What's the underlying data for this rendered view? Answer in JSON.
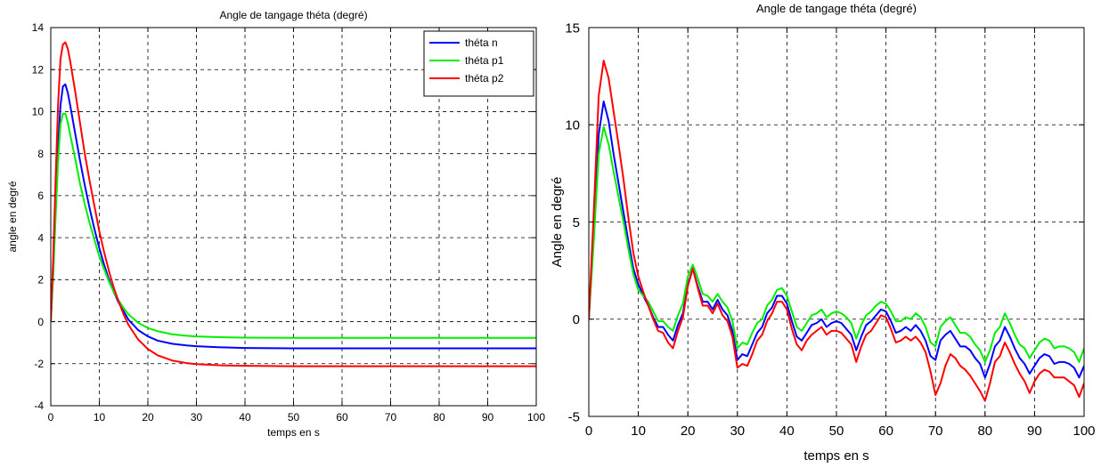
{
  "chart_data": [
    {
      "type": "line",
      "title": "Angle de tangage théta (degré)",
      "xlabel": "temps en s",
      "ylabel": "angle en degré",
      "xlim": [
        0,
        100
      ],
      "ylim": [
        -4,
        14
      ],
      "xticks": [
        0,
        10,
        20,
        30,
        40,
        50,
        60,
        70,
        80,
        90,
        100
      ],
      "yticks": [
        -4,
        -2,
        0,
        2,
        4,
        6,
        8,
        10,
        12,
        14
      ],
      "grid": true,
      "legend": "top-right",
      "series": [
        {
          "name": "théta n",
          "color": "#0000ff",
          "x": [
            0,
            0.5,
            1,
            1.5,
            2,
            2.5,
            3,
            3.5,
            4,
            5,
            6,
            7,
            8,
            9,
            10,
            11,
            12,
            13,
            14,
            15,
            16,
            18,
            20,
            22,
            25,
            28,
            30,
            35,
            40,
            50,
            60,
            70,
            80,
            90,
            100
          ],
          "y": [
            0,
            2.5,
            5.5,
            8.3,
            10.3,
            11.2,
            11.3,
            10.9,
            10.3,
            9.0,
            7.7,
            6.5,
            5.4,
            4.4,
            3.5,
            2.7,
            2.0,
            1.4,
            0.9,
            0.5,
            0.1,
            -0.4,
            -0.7,
            -0.9,
            -1.05,
            -1.13,
            -1.17,
            -1.22,
            -1.25,
            -1.27,
            -1.27,
            -1.27,
            -1.27,
            -1.27,
            -1.27
          ]
        },
        {
          "name": "théta p1",
          "color": "#00ee00",
          "x": [
            0,
            0.5,
            1,
            1.5,
            2,
            2.5,
            3,
            3.5,
            4,
            5,
            6,
            7,
            8,
            9,
            10,
            11,
            12,
            13,
            14,
            15,
            16,
            18,
            20,
            22,
            25,
            28,
            30,
            35,
            40,
            50,
            60,
            70,
            80,
            90,
            100
          ],
          "y": [
            0,
            2.2,
            5.0,
            7.6,
            9.4,
            9.9,
            9.9,
            9.5,
            8.9,
            7.8,
            6.6,
            5.6,
            4.7,
            3.9,
            3.1,
            2.5,
            1.9,
            1.4,
            1.0,
            0.65,
            0.35,
            -0.05,
            -0.3,
            -0.45,
            -0.6,
            -0.67,
            -0.7,
            -0.74,
            -0.76,
            -0.77,
            -0.77,
            -0.77,
            -0.77,
            -0.77,
            -0.77
          ]
        },
        {
          "name": "théta p2",
          "color": "#ff0000",
          "x": [
            0,
            0.5,
            1,
            1.5,
            2,
            2.5,
            3,
            3.5,
            4,
            5,
            6,
            7,
            8,
            9,
            10,
            11,
            12,
            13,
            14,
            15,
            16,
            18,
            20,
            22,
            25,
            28,
            30,
            35,
            40,
            50,
            60,
            70,
            80,
            90,
            100
          ],
          "y": [
            0,
            3.0,
            6.8,
            10.3,
            12.5,
            13.2,
            13.3,
            13.0,
            12.4,
            11.0,
            9.5,
            8.0,
            6.7,
            5.5,
            4.3,
            3.3,
            2.4,
            1.6,
            0.95,
            0.35,
            -0.15,
            -0.85,
            -1.3,
            -1.6,
            -1.85,
            -1.97,
            -2.02,
            -2.08,
            -2.1,
            -2.12,
            -2.12,
            -2.12,
            -2.12,
            -2.12,
            -2.12
          ]
        }
      ]
    },
    {
      "type": "line",
      "title": "Angle  de tangage théta (degré)",
      "xlabel": "temps en s",
      "ylabel": "Angle en degré",
      "xlim": [
        0,
        100
      ],
      "ylim": [
        -5,
        15
      ],
      "xticks": [
        0,
        10,
        20,
        30,
        40,
        50,
        60,
        70,
        80,
        90,
        100
      ],
      "yticks": [
        -5,
        0,
        5,
        10,
        15
      ],
      "grid": true,
      "series": [
        {
          "color": "#0000ff",
          "x": [
            0,
            1,
            2,
            3,
            4,
            5,
            6,
            7,
            8,
            9,
            10,
            11,
            12,
            13,
            14,
            15,
            16,
            17,
            18,
            19,
            20,
            21,
            22,
            23,
            24,
            25,
            26,
            27,
            28,
            29,
            30,
            31,
            32,
            33,
            34,
            35,
            36,
            37,
            38,
            39,
            40,
            41,
            42,
            43,
            44,
            45,
            46,
            47,
            48,
            49,
            50,
            51,
            52,
            53,
            54,
            55,
            56,
            57,
            58,
            59,
            60,
            61,
            62,
            63,
            64,
            65,
            66,
            67,
            68,
            69,
            70,
            71,
            72,
            73,
            74,
            75,
            76,
            77,
            78,
            79,
            80,
            81,
            82,
            83,
            84,
            85,
            86,
            87,
            88,
            89,
            90,
            91,
            92,
            93,
            94,
            95,
            96,
            97,
            98,
            99,
            100
          ],
          "y": [
            0,
            4.5,
            9.5,
            11.2,
            10.2,
            8.5,
            7.0,
            5.5,
            4.0,
            2.6,
            1.8,
            1.2,
            0.7,
            0.1,
            -0.4,
            -0.4,
            -0.8,
            -1.1,
            -0.3,
            0.3,
            1.8,
            2.6,
            1.7,
            0.9,
            0.9,
            0.5,
            1.0,
            0.5,
            0.2,
            -0.6,
            -2.1,
            -1.8,
            -1.9,
            -1.3,
            -0.7,
            -0.4,
            0.3,
            0.6,
            1.2,
            1.2,
            0.8,
            -0.1,
            -0.9,
            -1.1,
            -0.7,
            -0.3,
            -0.2,
            0.0,
            -0.4,
            -0.2,
            -0.1,
            -0.2,
            -0.5,
            -0.8,
            -1.6,
            -0.9,
            -0.3,
            -0.1,
            0.2,
            0.5,
            0.4,
            -0.1,
            -0.7,
            -0.6,
            -0.4,
            -0.6,
            -0.3,
            -0.6,
            -1.1,
            -1.9,
            -2.1,
            -1.1,
            -0.8,
            -0.6,
            -1.0,
            -1.4,
            -1.4,
            -1.6,
            -2.0,
            -2.3,
            -3.0,
            -2.3,
            -1.4,
            -1.1,
            -0.4,
            -0.9,
            -1.5,
            -2.0,
            -2.3,
            -2.8,
            -2.4,
            -2.0,
            -1.8,
            -1.9,
            -2.3,
            -2.2,
            -2.2,
            -2.3,
            -2.5,
            -3.0,
            -2.4
          ]
        },
        {
          "color": "#00ee00",
          "x": [
            0,
            1,
            2,
            3,
            4,
            5,
            6,
            7,
            8,
            9,
            10,
            11,
            12,
            13,
            14,
            15,
            16,
            17,
            18,
            19,
            20,
            21,
            22,
            23,
            24,
            25,
            26,
            27,
            28,
            29,
            30,
            31,
            32,
            33,
            34,
            35,
            36,
            37,
            38,
            39,
            40,
            41,
            42,
            43,
            44,
            45,
            46,
            47,
            48,
            49,
            50,
            51,
            52,
            53,
            54,
            55,
            56,
            57,
            58,
            59,
            60,
            61,
            62,
            63,
            64,
            65,
            66,
            67,
            68,
            69,
            70,
            71,
            72,
            73,
            74,
            75,
            76,
            77,
            78,
            79,
            80,
            81,
            82,
            83,
            84,
            85,
            86,
            87,
            88,
            89,
            90,
            91,
            92,
            93,
            94,
            95,
            96,
            97,
            98,
            99,
            100
          ],
          "y": [
            0,
            4.0,
            8.5,
            9.9,
            9.0,
            7.6,
            6.3,
            5.0,
            3.6,
            2.3,
            1.5,
            1.2,
            0.9,
            0.4,
            -0.1,
            -0.1,
            -0.4,
            -0.6,
            0.2,
            0.8,
            2.2,
            2.8,
            2.1,
            1.3,
            1.2,
            0.9,
            1.3,
            0.9,
            0.6,
            -0.1,
            -1.5,
            -1.2,
            -1.3,
            -0.7,
            -0.2,
            0.0,
            0.7,
            1.0,
            1.5,
            1.6,
            1.2,
            0.4,
            -0.4,
            -0.6,
            -0.2,
            0.2,
            0.3,
            0.5,
            0.1,
            0.3,
            0.4,
            0.3,
            0.1,
            -0.2,
            -1.0,
            -0.3,
            0.2,
            0.4,
            0.7,
            0.9,
            0.8,
            0.4,
            -0.1,
            -0.1,
            0.1,
            0.0,
            0.3,
            0.1,
            -0.4,
            -1.2,
            -1.4,
            -0.4,
            -0.1,
            0.1,
            -0.3,
            -0.7,
            -0.7,
            -0.9,
            -1.3,
            -1.6,
            -2.2,
            -1.6,
            -0.7,
            -0.4,
            0.3,
            -0.2,
            -0.8,
            -1.3,
            -1.5,
            -2.0,
            -1.6,
            -1.2,
            -1.0,
            -1.1,
            -1.5,
            -1.4,
            -1.4,
            -1.5,
            -1.7,
            -2.2,
            -1.5
          ]
        },
        {
          "color": "#ff0000",
          "x": [
            0,
            1,
            2,
            3,
            4,
            5,
            6,
            7,
            8,
            9,
            10,
            11,
            12,
            13,
            14,
            15,
            16,
            17,
            18,
            19,
            20,
            21,
            22,
            23,
            24,
            25,
            26,
            27,
            28,
            29,
            30,
            31,
            32,
            33,
            34,
            35,
            36,
            37,
            38,
            39,
            40,
            41,
            42,
            43,
            44,
            45,
            46,
            47,
            48,
            49,
            50,
            51,
            52,
            53,
            54,
            55,
            56,
            57,
            58,
            59,
            60,
            61,
            62,
            63,
            64,
            65,
            66,
            67,
            68,
            69,
            70,
            71,
            72,
            73,
            74,
            75,
            76,
            77,
            78,
            79,
            80,
            81,
            82,
            83,
            84,
            85,
            86,
            87,
            88,
            89,
            90,
            91,
            92,
            93,
            94,
            95,
            96,
            97,
            98,
            99,
            100
          ],
          "y": [
            0,
            5.5,
            11.5,
            13.3,
            12.4,
            10.7,
            9.0,
            7.2,
            5.2,
            3.4,
            2.2,
            1.4,
            0.7,
            0.0,
            -0.6,
            -0.7,
            -1.2,
            -1.5,
            -0.6,
            0.1,
            1.7,
            2.6,
            1.6,
            0.7,
            0.7,
            0.3,
            0.8,
            0.2,
            -0.1,
            -0.9,
            -2.5,
            -2.3,
            -2.4,
            -1.8,
            -1.1,
            -0.8,
            -0.1,
            0.3,
            0.9,
            0.9,
            0.5,
            -0.5,
            -1.3,
            -1.6,
            -1.1,
            -0.8,
            -0.6,
            -0.4,
            -0.8,
            -0.6,
            -0.6,
            -0.7,
            -1.0,
            -1.3,
            -2.2,
            -1.4,
            -0.8,
            -0.6,
            -0.2,
            0.2,
            0.1,
            -0.5,
            -1.2,
            -1.1,
            -0.9,
            -1.1,
            -0.9,
            -1.2,
            -1.7,
            -2.7,
            -3.9,
            -3.3,
            -2.4,
            -1.8,
            -2.0,
            -2.4,
            -2.6,
            -2.9,
            -3.3,
            -3.7,
            -4.2,
            -3.3,
            -2.2,
            -1.9,
            -1.2,
            -1.7,
            -2.3,
            -2.8,
            -3.2,
            -3.8,
            -3.2,
            -2.8,
            -2.6,
            -2.7,
            -3.0,
            -3.0,
            -3.0,
            -3.2,
            -3.4,
            -4.0,
            -3.3
          ]
        }
      ]
    }
  ]
}
